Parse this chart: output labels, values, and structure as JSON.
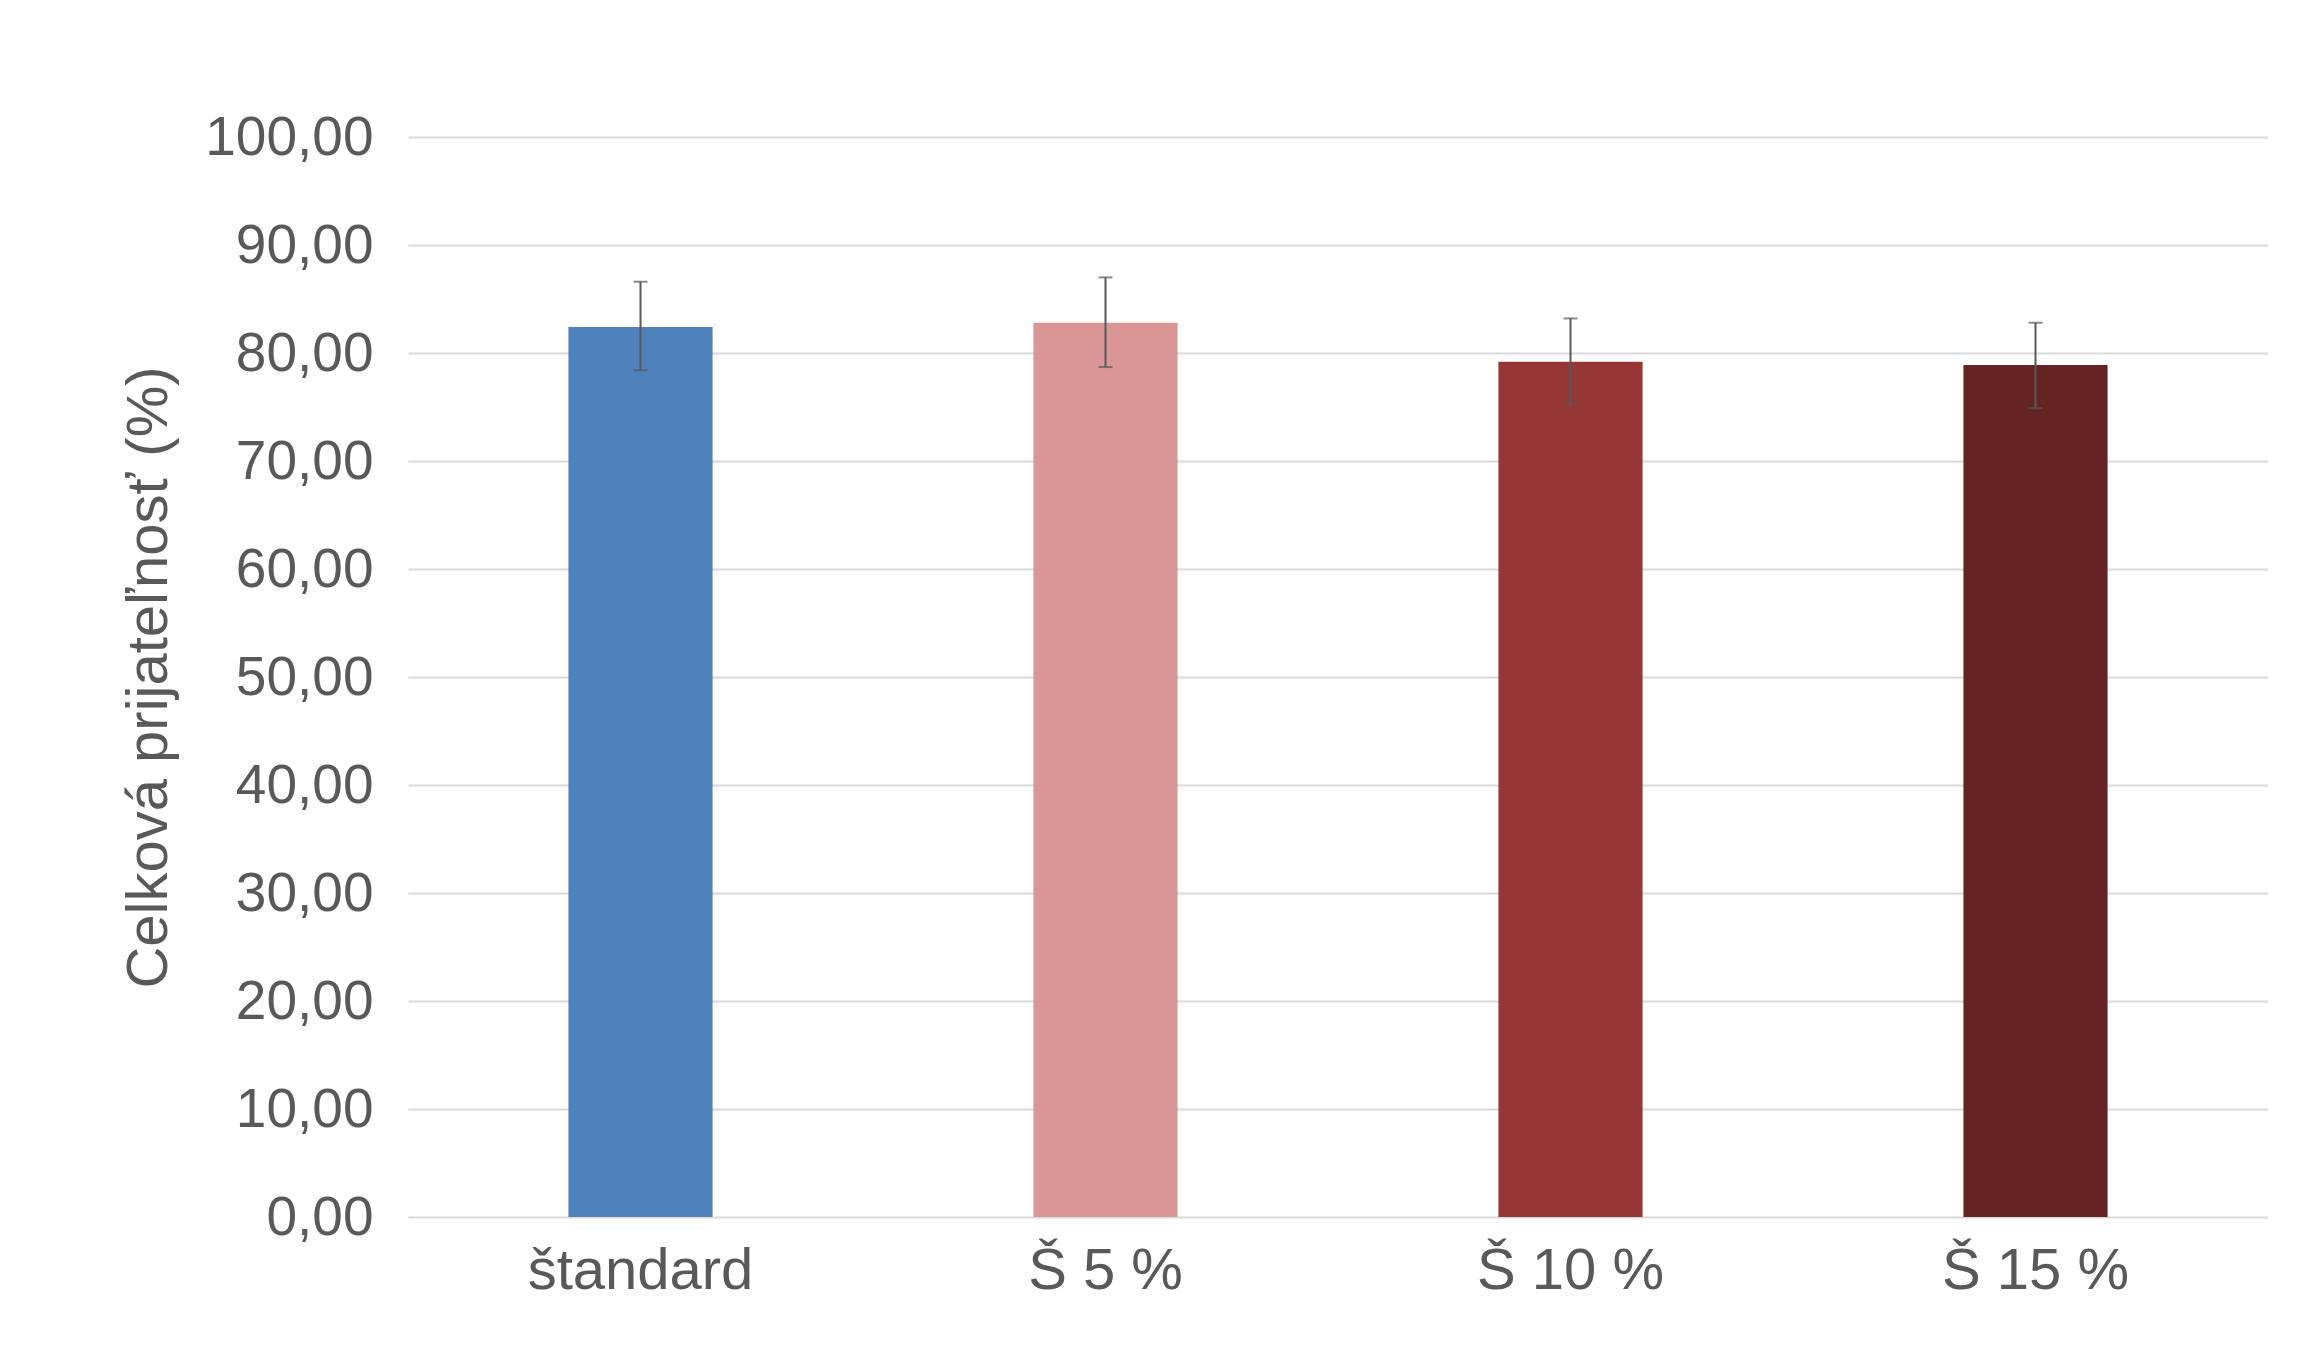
{
  "chart_data": {
    "type": "bar",
    "ylabel": "Celková prijateľnosť (%)",
    "categories": [
      "štandard",
      "Š 5 %",
      "Š 10 %",
      "Š 15 %"
    ],
    "values": [
      82.4,
      82.8,
      79.2,
      78.9
    ],
    "colors": [
      "#4f81bd",
      "#d99694",
      "#953735",
      "#632423"
    ],
    "errors": [
      [
        78.4,
        86.6
      ],
      [
        78.7,
        87.0
      ],
      [
        75.3,
        83.2
      ],
      [
        74.9,
        82.8
      ]
    ],
    "ylim": [
      0,
      100
    ],
    "yticks": [
      {
        "value": 0,
        "label": "0,00"
      },
      {
        "value": 10,
        "label": "10,00"
      },
      {
        "value": 20,
        "label": "20,00"
      },
      {
        "value": 30,
        "label": "30,00"
      },
      {
        "value": 40,
        "label": "40,00"
      },
      {
        "value": 50,
        "label": "50,00"
      },
      {
        "value": 60,
        "label": "60,00"
      },
      {
        "value": 70,
        "label": "70,00"
      },
      {
        "value": 80,
        "label": "80,00"
      },
      {
        "value": 90,
        "label": "90,00"
      },
      {
        "value": 100,
        "label": "100,00"
      }
    ],
    "grid": "y"
  }
}
